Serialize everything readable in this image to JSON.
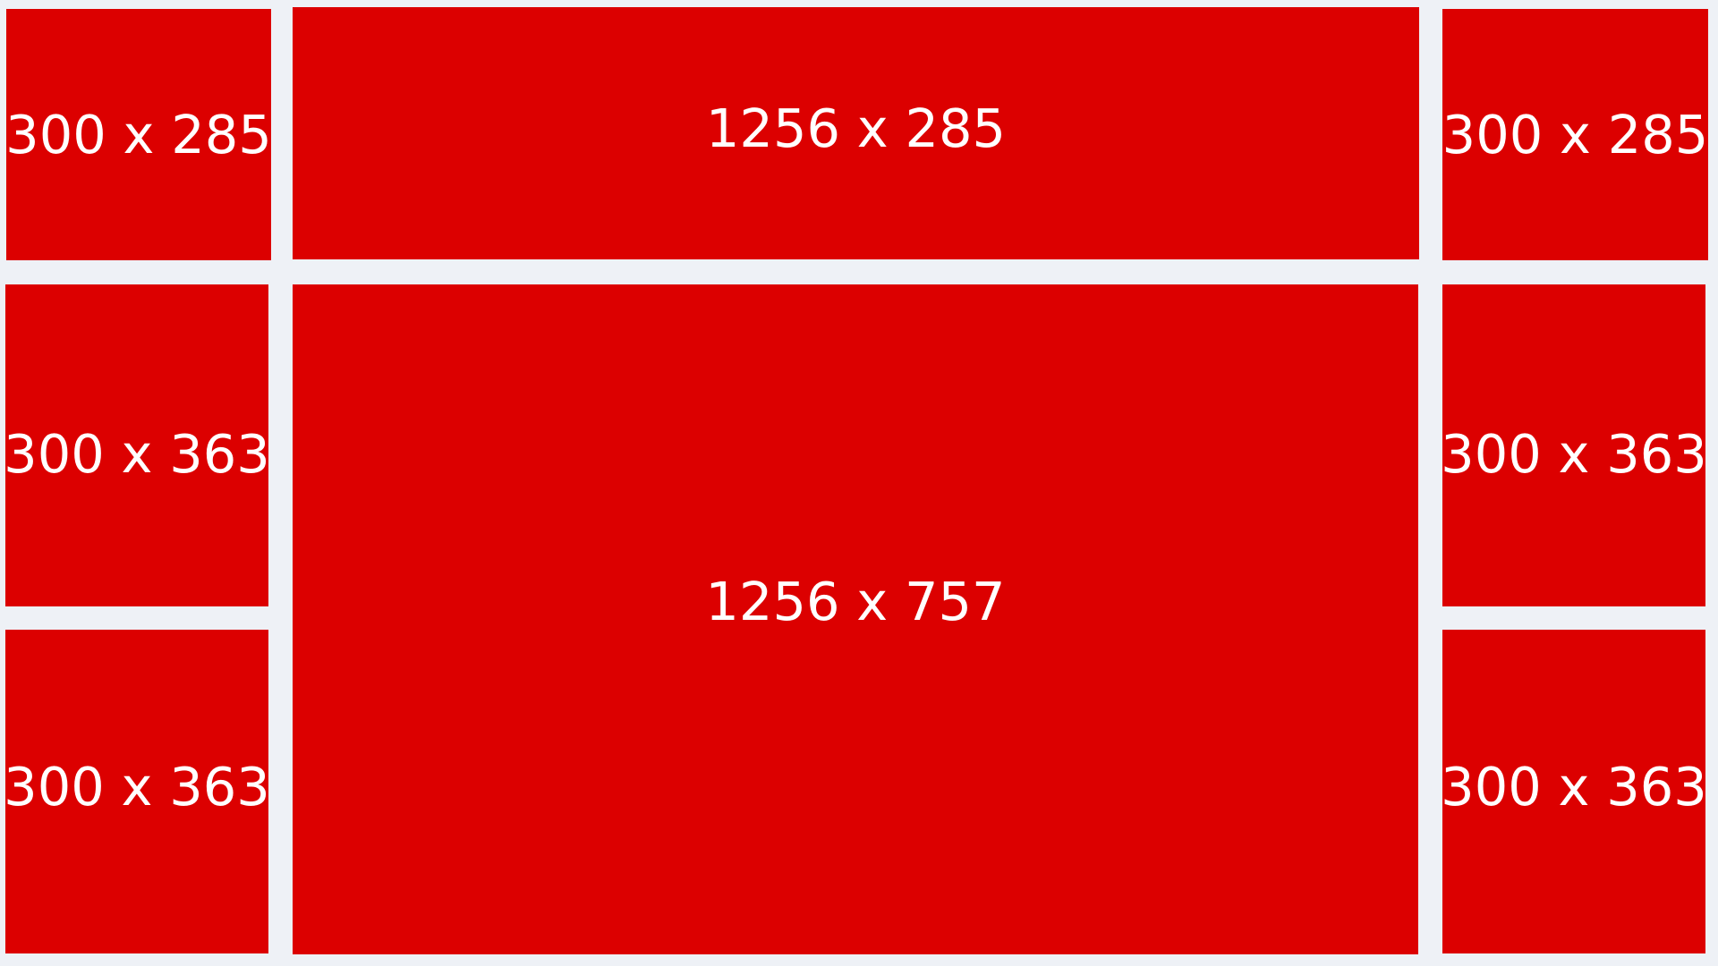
{
  "theme": {
    "background": "#eef1f6",
    "panel_color": "#dc0000",
    "text_color": "#ffffff"
  },
  "panels": {
    "top_left": {
      "label": "300 x 285"
    },
    "top_center": {
      "label": "1256 x 285"
    },
    "top_right": {
      "label": "300 x 285"
    },
    "mid_left": {
      "label": "300 x 363"
    },
    "main_center": {
      "label": "1256 x 757"
    },
    "mid_right": {
      "label": "300 x 363"
    },
    "bot_left": {
      "label": "300 x 363"
    },
    "bot_right": {
      "label": "300 x 363"
    }
  }
}
